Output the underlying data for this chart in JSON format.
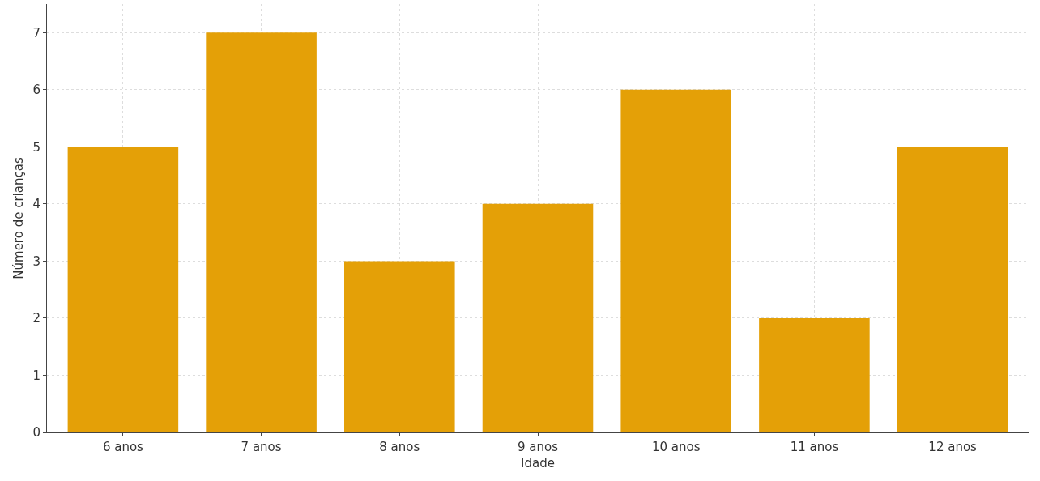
{
  "chart_data": {
    "type": "bar",
    "xlabel": "Idade",
    "ylabel": "Número de crianças",
    "categories": [
      "6 anos",
      "7 anos",
      "8 anos",
      "9 anos",
      "10 anos",
      "11 anos",
      "12 anos"
    ],
    "values": [
      5,
      7,
      3,
      4,
      6,
      2,
      5
    ],
    "color": "#e4a007",
    "ylim": [
      0,
      7.5
    ],
    "yticks": [
      0,
      1,
      2,
      3,
      4,
      5,
      6,
      7
    ],
    "grid": true
  }
}
